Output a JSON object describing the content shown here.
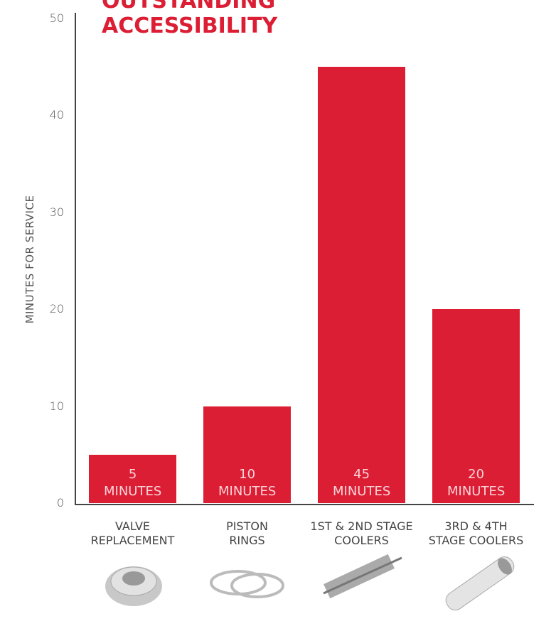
{
  "chart_data": {
    "type": "bar",
    "title": "OUTSTANDING\nACCESSIBILITY",
    "y_label": "MINUTES FOR SERVICE",
    "categories": [
      "VALVE\nREPLACEMENT",
      "PISTON\nRINGS",
      "1ST & 2ND STAGE\nCOOLERS",
      "3RD & 4TH\nSTAGE COOLERS"
    ],
    "values": [
      5,
      10,
      45,
      20
    ],
    "value_labels": [
      "5 MINUTES",
      "10 MINUTES",
      "45 MINUTES",
      "20 MINUTES"
    ],
    "color": "#dc1e35",
    "ylim": [
      0,
      50
    ],
    "yticks": [
      0,
      10,
      20,
      30,
      40,
      50
    ],
    "grid": false
  }
}
